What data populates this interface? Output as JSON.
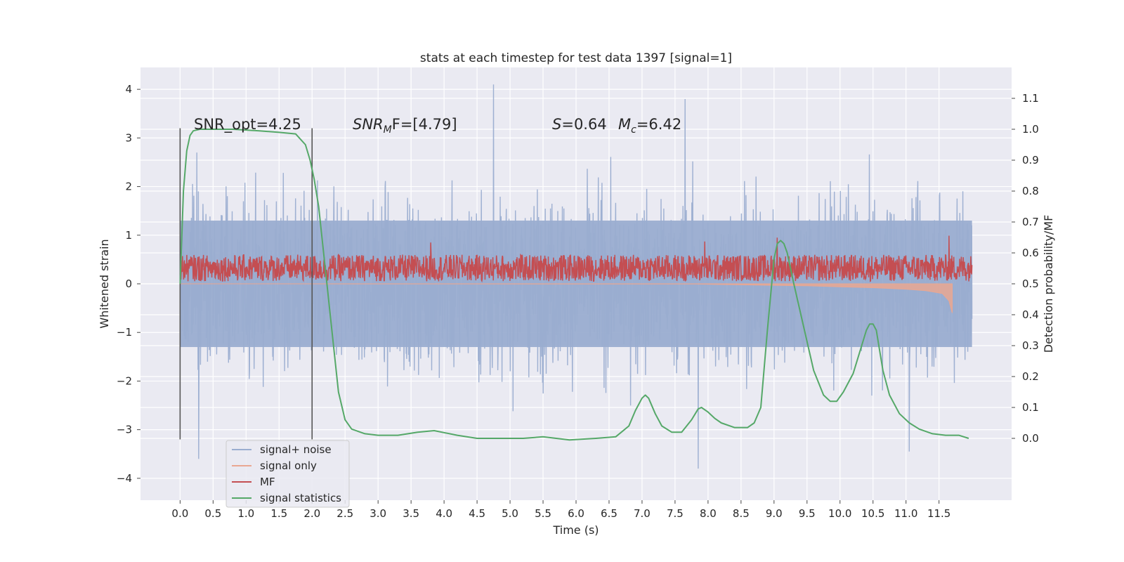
{
  "chart_data": {
    "type": "line",
    "title": "stats at each timestep for test data 1397 [signal=1]",
    "xlabel": "Time (s)",
    "ylabel": "Whitened strain",
    "ylabel_right": "Detection probability/MF",
    "xlim": [
      -0.6,
      12.6
    ],
    "ylim": [
      -4.45,
      4.45
    ],
    "ylim_right": [
      -0.2,
      1.2
    ],
    "x_ticks": [
      "0.0",
      "0.5",
      "1.0",
      "1.5",
      "2.0",
      "2.5",
      "3.0",
      "3.5",
      "4.0",
      "4.5",
      "5.0",
      "5.5",
      "6.0",
      "6.5",
      "7.0",
      "7.5",
      "8.0",
      "8.5",
      "9.0",
      "9.5",
      "10.0",
      "10.5",
      "11.0",
      "11.5"
    ],
    "y_ticks": [
      "4",
      "3",
      "2",
      "1",
      "0",
      "−1",
      "−2",
      "−3",
      "−4"
    ],
    "y_ticks_right": [
      "1.1",
      "1.0",
      "0.9",
      "0.8",
      "0.7",
      "0.6",
      "0.5",
      "0.4",
      "0.3",
      "0.2",
      "0.1",
      "0.0"
    ],
    "grid": true,
    "legend_position": "lower-left",
    "annotations": {
      "snr_opt": "SNR_opt=4.25",
      "snr_mf_name": "SNR",
      "snr_mf_sub": "M",
      "snr_mf_rest": "F=[4.79]",
      "s_name": "S",
      "s_rest": "=0.64",
      "mc_name": "M",
      "mc_sub": "c",
      "mc_rest": "=6.42"
    },
    "vertical_lines_x": [
      0.0,
      2.0
    ],
    "vertical_lines_y_range": [
      -3.2,
      3.2
    ],
    "series": [
      {
        "name": "signal+ noise",
        "color": "#9aadd0",
        "x_range": [
          0.0,
          12.0
        ],
        "envelope": {
          "typical_abs": 1.3,
          "peak_abs": 4.1,
          "notable_peaks": [
            [
              4.75,
              4.1
            ],
            [
              7.65,
              3.8
            ],
            [
              0.28,
              -3.6
            ],
            [
              7.85,
              -3.8
            ],
            [
              11.05,
              -3.45
            ]
          ]
        }
      },
      {
        "name": "signal only",
        "color": "#e9a792",
        "x": [
          0,
          7.8,
          8.5,
          9.0,
          9.5,
          10.0,
          10.5,
          11.0,
          11.3,
          11.55,
          11.65,
          11.7
        ],
        "y": [
          0,
          -0.005,
          -0.02,
          -0.03,
          -0.04,
          -0.06,
          -0.08,
          -0.11,
          -0.14,
          -0.2,
          -0.35,
          -0.6
        ]
      },
      {
        "name": "MF",
        "color": "#c44e52",
        "x_range": [
          0.0,
          12.0
        ],
        "band": {
          "low": 0.05,
          "high": 0.6,
          "spikes": [
            [
              3.8,
              0.85
            ],
            [
              7.95,
              0.87
            ],
            [
              9.05,
              0.95
            ],
            [
              11.65,
              0.99
            ]
          ]
        }
      },
      {
        "name": "signal statistics",
        "color": "#55a868",
        "axis": "right",
        "x": [
          0.0,
          0.05,
          0.1,
          0.15,
          0.2,
          0.3,
          0.5,
          0.8,
          1.2,
          1.5,
          1.75,
          1.9,
          1.97,
          2.03,
          2.1,
          2.2,
          2.3,
          2.4,
          2.5,
          2.6,
          2.8,
          3.0,
          3.3,
          3.6,
          3.85,
          4.2,
          4.5,
          4.8,
          5.2,
          5.5,
          5.9,
          6.3,
          6.6,
          6.8,
          6.9,
          7.0,
          7.05,
          7.1,
          7.2,
          7.3,
          7.45,
          7.6,
          7.75,
          7.85,
          7.9,
          8.0,
          8.1,
          8.2,
          8.4,
          8.6,
          8.7,
          8.8,
          8.9,
          9.0,
          9.05,
          9.1,
          9.15,
          9.2,
          9.3,
          9.45,
          9.6,
          9.75,
          9.85,
          9.95,
          10.05,
          10.2,
          10.3,
          10.4,
          10.45,
          10.5,
          10.55,
          10.65,
          10.75,
          10.9,
          11.05,
          11.2,
          11.4,
          11.6,
          11.8,
          11.95
        ],
        "y": [
          0.5,
          0.8,
          0.93,
          0.98,
          0.995,
          1.0,
          1.0,
          1.0,
          0.995,
          0.99,
          0.985,
          0.95,
          0.9,
          0.84,
          0.75,
          0.55,
          0.35,
          0.15,
          0.06,
          0.03,
          0.015,
          0.01,
          0.01,
          0.02,
          0.025,
          0.01,
          0.0,
          0.0,
          0.0,
          0.005,
          -0.005,
          0.0,
          0.005,
          0.04,
          0.09,
          0.13,
          0.14,
          0.13,
          0.08,
          0.04,
          0.02,
          0.02,
          0.06,
          0.095,
          0.1,
          0.085,
          0.065,
          0.05,
          0.035,
          0.035,
          0.05,
          0.1,
          0.35,
          0.58,
          0.63,
          0.64,
          0.63,
          0.6,
          0.5,
          0.36,
          0.22,
          0.14,
          0.12,
          0.12,
          0.15,
          0.21,
          0.28,
          0.35,
          0.37,
          0.37,
          0.35,
          0.22,
          0.14,
          0.08,
          0.05,
          0.03,
          0.015,
          0.01,
          0.01,
          0.0
        ]
      }
    ]
  }
}
